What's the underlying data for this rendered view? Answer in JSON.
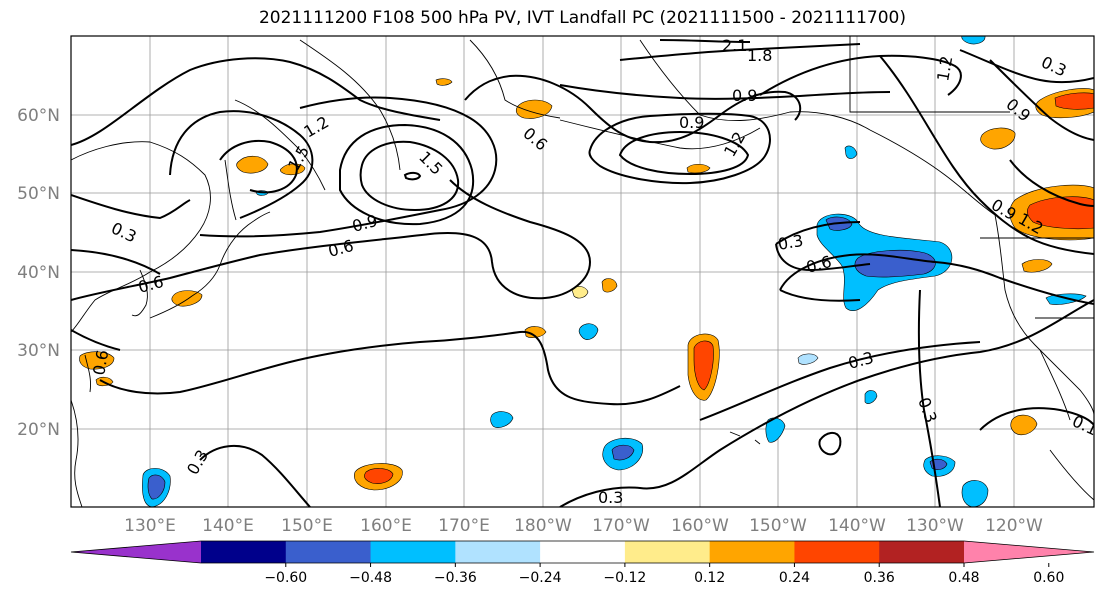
{
  "title": "2021111200 F108 500 hPa PV, IVT Landfall PC (2021111500 - 2021111700)",
  "lat_labels": [
    "60°N",
    "50°N",
    "40°N",
    "30°N",
    "20°N"
  ],
  "lon_labels": [
    "130°E",
    "140°E",
    "150°E",
    "160°E",
    "170°E",
    "180°W",
    "170°W",
    "160°W",
    "150°W",
    "140°W",
    "130°W",
    "120°W"
  ],
  "colorbar": {
    "ticks": [
      "−0.60",
      "−0.48",
      "−0.36",
      "−0.24",
      "−0.12",
      "0.12",
      "0.24",
      "0.36",
      "0.48",
      "0.60"
    ],
    "colors": [
      "#9932cc",
      "#00008b",
      "#3a5fcd",
      "#00bfff",
      "#b0e2ff",
      "#ffffff",
      "#ffec8b",
      "#ffa500",
      "#ff4500",
      "#b22222",
      "#ff82ab"
    ]
  },
  "contour_labels": [
    "2.1",
    "1.8",
    "1.2",
    "0.9",
    "1.2",
    "1.5",
    "0.6",
    "0.9",
    "0.9",
    "1.5",
    "1.2",
    "0.9",
    "0.3",
    "0.6",
    "0.9",
    "0.6",
    "0.3",
    "0.6",
    "0.3",
    "0.3",
    "0.3",
    "0.3",
    "0.1",
    "0.6",
    "1.2",
    "0.3"
  ]
}
